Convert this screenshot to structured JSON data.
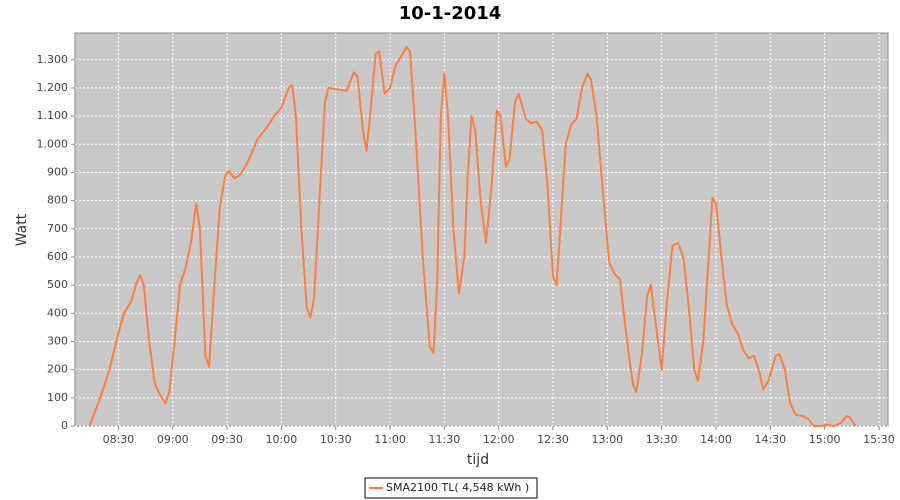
{
  "chart_data": {
    "type": "line",
    "title": "10-1-2014",
    "x_label": "tijd",
    "y_label": "Watt",
    "legend": "bottom",
    "grid": true,
    "background": "#c8c8c8",
    "x": [
      "08:14",
      "08:20",
      "08:25",
      "08:30",
      "08:33",
      "08:37",
      "08:40",
      "08:42",
      "08:44",
      "08:47",
      "08:50",
      "08:53",
      "08:56",
      "08:58",
      "09:01",
      "09:04",
      "09:07",
      "09:10",
      "09:13",
      "09:15",
      "09:18",
      "09:20",
      "09:23",
      "09:26",
      "09:29",
      "09:31",
      "09:34",
      "09:37",
      "09:40",
      "09:43",
      "09:47",
      "09:52",
      "09:56",
      "10:00",
      "10:04",
      "10:06",
      "10:08",
      "10:11",
      "10:14",
      "10:16",
      "10:18",
      "10:21",
      "10:24",
      "10:26",
      "10:30",
      "10:36",
      "10:40",
      "10:42",
      "10:45",
      "10:47",
      "10:49",
      "10:52",
      "10:54",
      "10:57",
      "11:00",
      "11:03",
      "11:06",
      "11:09",
      "11:11",
      "11:14",
      "11:18",
      "11:22",
      "11:24",
      "11:26",
      "11:28",
      "11:30",
      "11:32",
      "11:35",
      "11:38",
      "11:41",
      "11:43",
      "11:45",
      "11:47",
      "11:50",
      "11:53",
      "11:56",
      "11:59",
      "12:01",
      "12:04",
      "12:06",
      "12:09",
      "12:11",
      "12:15",
      "12:18",
      "12:21",
      "12:24",
      "12:27",
      "12:30",
      "12:32",
      "12:34",
      "12:37",
      "12:40",
      "12:43",
      "12:46",
      "12:49",
      "12:51",
      "12:54",
      "12:58",
      "13:01",
      "13:04",
      "13:07",
      "13:10",
      "13:14",
      "13:16",
      "13:19",
      "13:22",
      "13:24",
      "13:27",
      "13:30",
      "13:33",
      "13:36",
      "13:39",
      "13:42",
      "13:45",
      "13:48",
      "13:50",
      "13:53",
      "13:56",
      "13:58",
      "14:00",
      "14:03",
      "14:06",
      "14:09",
      "14:12",
      "14:15",
      "14:18",
      "14:21",
      "14:24",
      "14:26",
      "14:29",
      "14:33",
      "14:35",
      "14:38",
      "14:41",
      "14:44",
      "14:48",
      "14:51",
      "14:54",
      "14:58",
      "15:01",
      "15:05",
      "15:09",
      "15:12",
      "15:14",
      "15:17"
    ],
    "series": [
      {
        "name": "SMA2100 TL( 4,548 kWh )",
        "color": "#ff7f3f",
        "values": [
          0,
          100,
          200,
          330,
          400,
          440,
          510,
          535,
          500,
          300,
          150,
          110,
          80,
          120,
          300,
          500,
          560,
          650,
          790,
          700,
          250,
          210,
          500,
          780,
          890,
          905,
          880,
          890,
          920,
          960,
          1020,
          1060,
          1100,
          1130,
          1200,
          1210,
          1100,
          700,
          420,
          385,
          450,
          800,
          1150,
          1200,
          1195,
          1190,
          1255,
          1240,
          1050,
          975,
          1100,
          1320,
          1330,
          1180,
          1200,
          1280,
          1310,
          1345,
          1330,
          1050,
          600,
          280,
          260,
          500,
          1100,
          1250,
          1100,
          700,
          470,
          600,
          900,
          1100,
          1050,
          800,
          650,
          850,
          1120,
          1100,
          920,
          950,
          1150,
          1180,
          1090,
          1075,
          1080,
          1050,
          850,
          530,
          500,
          700,
          1000,
          1070,
          1090,
          1200,
          1250,
          1230,
          1100,
          800,
          580,
          540,
          520,
          350,
          150,
          120,
          250,
          460,
          500,
          350,
          200,
          450,
          640,
          650,
          600,
          420,
          200,
          160,
          300,
          600,
          810,
          790,
          600,
          430,
          360,
          330,
          270,
          240,
          250,
          190,
          130,
          160,
          250,
          255,
          200,
          80,
          40,
          35,
          25,
          0,
          0,
          5,
          0,
          10,
          35,
          30,
          0
        ]
      }
    ],
    "xlim": [
      "08:06",
      "15:35"
    ],
    "xticks": [
      "08:30",
      "09:00",
      "09:30",
      "10:00",
      "10:30",
      "11:00",
      "11:30",
      "12:00",
      "12:30",
      "13:00",
      "13:30",
      "14:00",
      "14:30",
      "15:00",
      "15:30"
    ],
    "ylim": [
      0,
      1395
    ],
    "yticks": [
      0,
      100,
      200,
      300,
      400,
      500,
      600,
      700,
      800,
      900,
      {
        "value": 1000,
        "label": "1.000"
      },
      {
        "value": 1100,
        "label": "1.100"
      },
      {
        "value": 1200,
        "label": "1.200"
      },
      {
        "value": 1300,
        "label": "1.300"
      }
    ]
  }
}
